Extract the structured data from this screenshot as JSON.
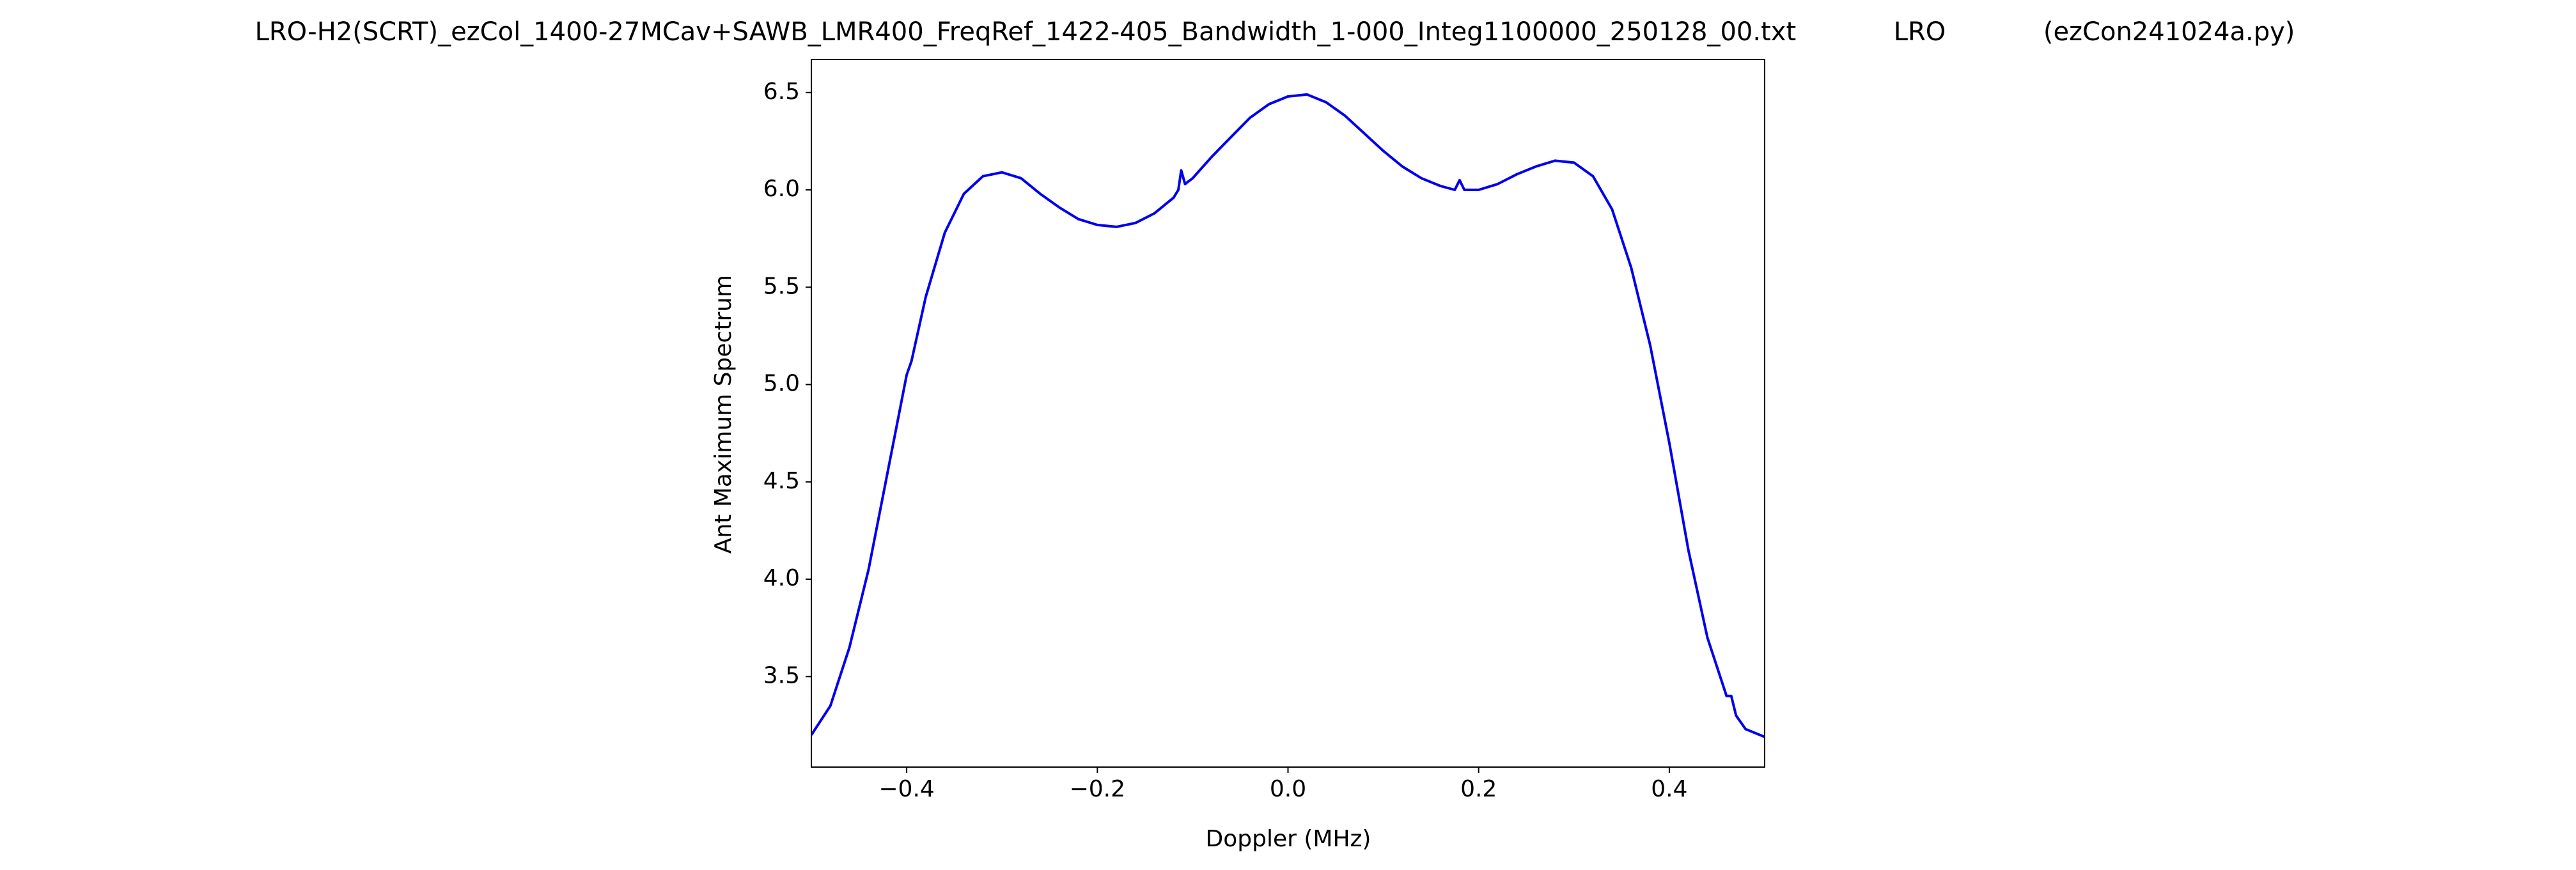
{
  "chart_data": {
    "type": "line",
    "title": "LRO-H2(SCRT)_ezCol_1400-27MCav+SAWB_LMR400_FreqRef_1422-405_Bandwidth_1-000_Integ1100000_250128_00.txt            LRO            (ezCon241024a.py)",
    "xlabel": "Doppler (MHz)",
    "ylabel": "Ant Maximum Spectrum",
    "color": "#0000ee",
    "x": [
      -0.5,
      -0.48,
      -0.46,
      -0.44,
      -0.42,
      -0.4,
      -0.395,
      -0.38,
      -0.36,
      -0.34,
      -0.32,
      -0.3,
      -0.28,
      -0.26,
      -0.24,
      -0.22,
      -0.2,
      -0.18,
      -0.16,
      -0.14,
      -0.12,
      -0.115,
      -0.112,
      -0.108,
      -0.1,
      -0.08,
      -0.06,
      -0.04,
      -0.02,
      0.0,
      0.02,
      0.04,
      0.06,
      0.08,
      0.1,
      0.12,
      0.14,
      0.16,
      0.175,
      0.18,
      0.185,
      0.2,
      0.22,
      0.24,
      0.26,
      0.28,
      0.3,
      0.32,
      0.34,
      0.36,
      0.38,
      0.4,
      0.42,
      0.44,
      0.46,
      0.465,
      0.47,
      0.48,
      0.5
    ],
    "values": [
      3.2,
      3.35,
      3.65,
      4.05,
      4.55,
      5.05,
      5.12,
      5.45,
      5.78,
      5.98,
      6.07,
      6.09,
      6.06,
      5.98,
      5.91,
      5.85,
      5.82,
      5.81,
      5.83,
      5.88,
      5.96,
      6.0,
      6.1,
      6.03,
      6.06,
      6.17,
      6.27,
      6.37,
      6.44,
      6.48,
      6.49,
      6.45,
      6.38,
      6.29,
      6.2,
      6.12,
      6.06,
      6.02,
      6.0,
      6.05,
      6.0,
      6.0,
      6.03,
      6.08,
      6.12,
      6.15,
      6.14,
      6.07,
      5.9,
      5.6,
      5.2,
      4.7,
      4.15,
      3.7,
      3.4,
      3.4,
      3.3,
      3.23,
      3.19
    ],
    "xlim": [
      -0.5,
      0.5
    ],
    "xticks": [
      {
        "value": -0.4,
        "label": "−0.4"
      },
      {
        "value": -0.2,
        "label": "−0.2"
      },
      {
        "value": 0.0,
        "label": "0.0"
      },
      0.2,
      0.4
    ],
    "ylim": [
      3.035,
      6.67
    ],
    "yticks": [
      3.5,
      {
        "value": 4.0,
        "label": "4.0"
      },
      4.5,
      {
        "value": 5.0,
        "label": "5.0"
      },
      5.5,
      {
        "value": 6.0,
        "label": "6.0"
      },
      6.5
    ]
  }
}
